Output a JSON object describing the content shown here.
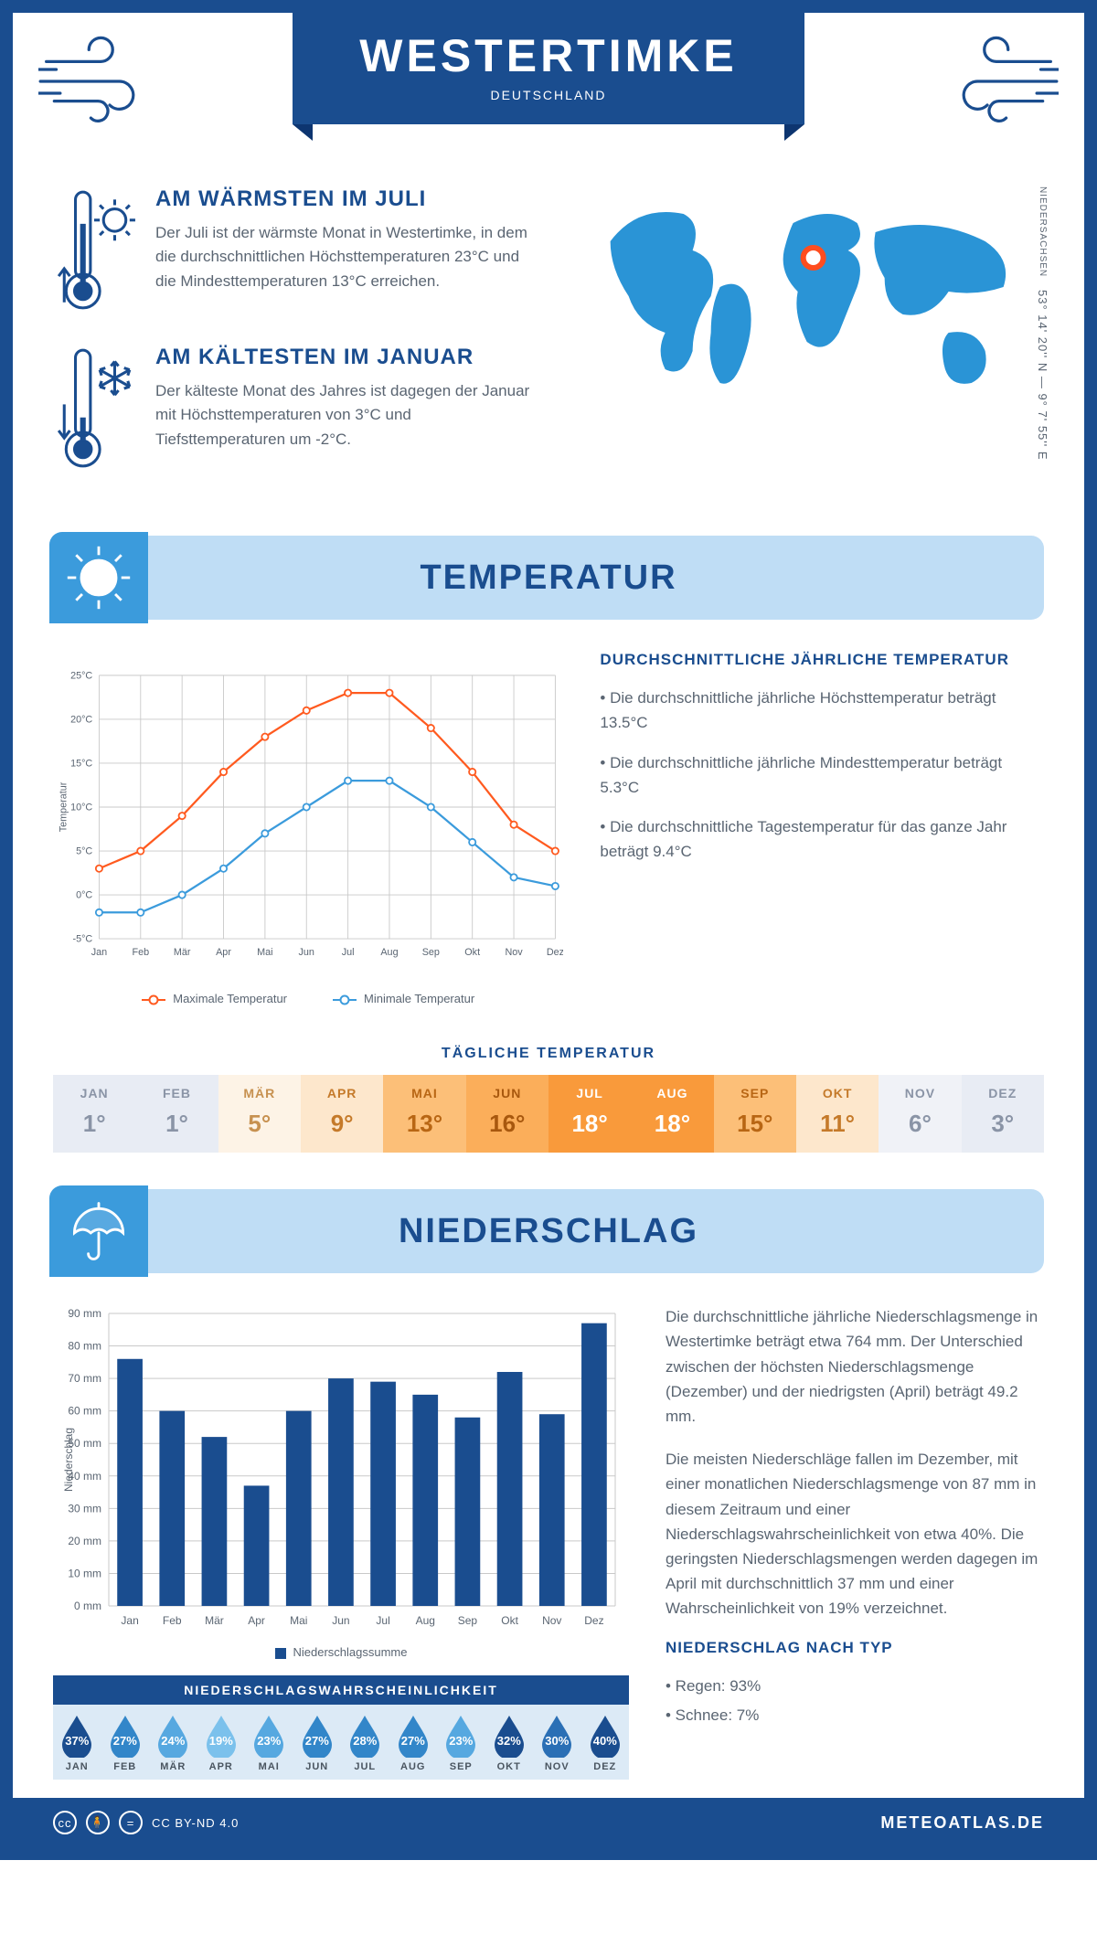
{
  "header": {
    "title": "WESTERTIMKE",
    "subtitle": "DEUTSCHLAND"
  },
  "coords": {
    "text": "53° 14' 20'' N — 9° 7' 55'' E",
    "region": "NIEDERSACHSEN"
  },
  "facts": {
    "warm": {
      "title": "AM WÄRMSTEN IM JULI",
      "body": "Der Juli ist der wärmste Monat in Westertimke, in dem die durchschnittlichen Höchsttemperaturen 23°C und die Mindesttemperaturen 13°C erreichen."
    },
    "cold": {
      "title": "AM KÄLTESTEN IM JANUAR",
      "body": "Der kälteste Monat des Jahres ist dagegen der Januar mit Höchsttemperaturen von 3°C und Tiefsttemperaturen um -2°C."
    }
  },
  "sections": {
    "temp": "TEMPERATUR",
    "precip": "NIEDERSCHLAG"
  },
  "temp_chart": {
    "months": [
      "Jan",
      "Feb",
      "Mär",
      "Apr",
      "Mai",
      "Jun",
      "Jul",
      "Aug",
      "Sep",
      "Okt",
      "Nov",
      "Dez"
    ],
    "max": [
      3,
      5,
      9,
      14,
      18,
      21,
      23,
      23,
      19,
      14,
      8,
      5
    ],
    "min": [
      -2,
      -2,
      0,
      3,
      7,
      10,
      13,
      13,
      10,
      6,
      2,
      1
    ],
    "ymin": -5,
    "ymax": 25,
    "ystep": 5,
    "ylabel": "Temperatur",
    "ytick_labels": [
      "-5°C",
      "0°C",
      "5°C",
      "10°C",
      "15°C",
      "20°C",
      "25°C"
    ],
    "color_max": "#ff5a1f",
    "color_min": "#3b9bdc",
    "grid_color": "#c9c9c9",
    "legend_max": "Maximale Temperatur",
    "legend_min": "Minimale Temperatur"
  },
  "temp_side": {
    "title": "DURCHSCHNITTLICHE JÄHRLICHE TEMPERATUR",
    "b1": "• Die durchschnittliche jährliche Höchsttemperatur beträgt 13.5°C",
    "b2": "• Die durchschnittliche jährliche Mindesttemperatur beträgt 5.3°C",
    "b3": "• Die durchschnittliche Tagestemperatur für das ganze Jahr beträgt 9.4°C"
  },
  "daily_title": "TÄGLICHE TEMPERATUR",
  "daily": {
    "months": [
      "JAN",
      "FEB",
      "MÄR",
      "APR",
      "MAI",
      "JUN",
      "JUL",
      "AUG",
      "SEP",
      "OKT",
      "NOV",
      "DEZ"
    ],
    "values": [
      "1°",
      "1°",
      "5°",
      "9°",
      "13°",
      "16°",
      "18°",
      "18°",
      "15°",
      "11°",
      "6°",
      "3°"
    ],
    "bg": [
      "#e8ecf4",
      "#e8ecf4",
      "#fdf3e6",
      "#fde7cc",
      "#fcbf78",
      "#fbae5a",
      "#f99a3b",
      "#f99a3b",
      "#fcbf78",
      "#fde7cc",
      "#f0f2f7",
      "#e8ecf4"
    ],
    "fg": [
      "#8a94a6",
      "#8a94a6",
      "#c79150",
      "#c57a2a",
      "#b86614",
      "#a8580e",
      "#ffffff",
      "#ffffff",
      "#b86614",
      "#c57a2a",
      "#8a94a6",
      "#8a94a6"
    ]
  },
  "precip_chart": {
    "months": [
      "Jan",
      "Feb",
      "Mär",
      "Apr",
      "Mai",
      "Jun",
      "Jul",
      "Aug",
      "Sep",
      "Okt",
      "Nov",
      "Dez"
    ],
    "values": [
      76,
      60,
      52,
      37,
      60,
      70,
      69,
      65,
      58,
      72,
      59,
      87
    ],
    "ymin": 0,
    "ymax": 90,
    "ystep": 10,
    "ylabel": "Niederschlag",
    "ytick_labels": [
      "0 mm",
      "10 mm",
      "20 mm",
      "30 mm",
      "40 mm",
      "50 mm",
      "60 mm",
      "70 mm",
      "80 mm",
      "90 mm"
    ],
    "bar_color": "#1a4d8f",
    "grid_color": "#c9c9c9",
    "legend": "Niederschlagssumme"
  },
  "precip_side": {
    "p1": "Die durchschnittliche jährliche Niederschlagsmenge in Westertimke beträgt etwa 764 mm. Der Unterschied zwischen der höchsten Niederschlagsmenge (Dezember) und der niedrigsten (April) beträgt 49.2 mm.",
    "p2": "Die meisten Niederschläge fallen im Dezember, mit einer monatlichen Niederschlagsmenge von 87 mm in diesem Zeitraum und einer Niederschlagswahrscheinlichkeit von etwa 40%. Die geringsten Niederschlagsmengen werden dagegen im April mit durchschnittlich 37 mm und einer Wahrscheinlichkeit von 19% verzeichnet.",
    "type_title": "NIEDERSCHLAG NACH TYP",
    "type1": "• Regen: 93%",
    "type2": "• Schnee: 7%"
  },
  "prob": {
    "title": "NIEDERSCHLAGSWAHRSCHEINLICHKEIT",
    "months": [
      "JAN",
      "FEB",
      "MÄR",
      "APR",
      "MAI",
      "JUN",
      "JUL",
      "AUG",
      "SEP",
      "OKT",
      "NOV",
      "DEZ"
    ],
    "values": [
      "37%",
      "27%",
      "24%",
      "19%",
      "23%",
      "27%",
      "28%",
      "27%",
      "23%",
      "32%",
      "30%",
      "40%"
    ],
    "colors": [
      "#1a4d8f",
      "#3286c9",
      "#56a8e0",
      "#7bc1ec",
      "#56a8e0",
      "#3286c9",
      "#3286c9",
      "#3286c9",
      "#56a8e0",
      "#1a4d8f",
      "#2a6fb5",
      "#1a4d8f"
    ]
  },
  "footer": {
    "license": "CC BY-ND 4.0",
    "brand": "METEOATLAS.DE"
  }
}
